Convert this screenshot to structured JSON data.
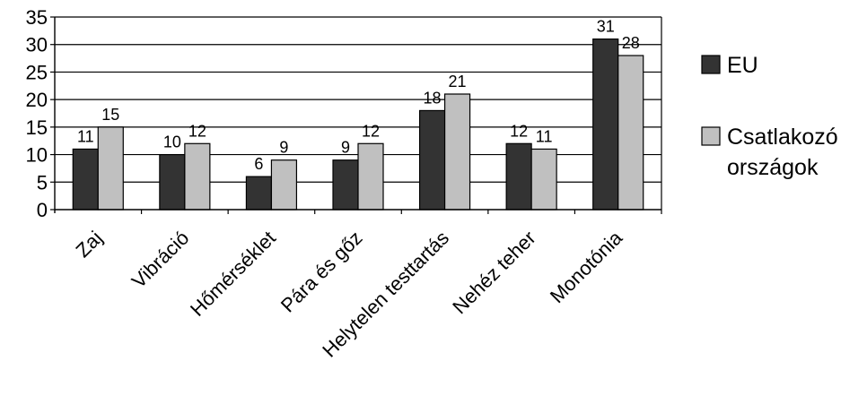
{
  "chart_data": {
    "type": "bar",
    "categories": [
      "Zaj",
      "Vibráció",
      "Hőmérséklet",
      "Pára és gőz",
      "Helytelen testtartás",
      "Nehéz teher",
      "Monotónia"
    ],
    "series": [
      {
        "name": "EU",
        "values": [
          11,
          10,
          6,
          9,
          18,
          12,
          31
        ],
        "color": "#333333"
      },
      {
        "name": "Csatlakozó országok",
        "name_lines": [
          "Csatlakozó",
          "országok"
        ],
        "values": [
          15,
          12,
          9,
          12,
          21,
          11,
          28
        ],
        "color": "#c0c0c0"
      }
    ],
    "yticks": [
      0,
      5,
      10,
      15,
      20,
      25,
      30,
      35
    ],
    "ylim": [
      0,
      35
    ],
    "grid": true,
    "legend": "right",
    "data_labels": true
  }
}
